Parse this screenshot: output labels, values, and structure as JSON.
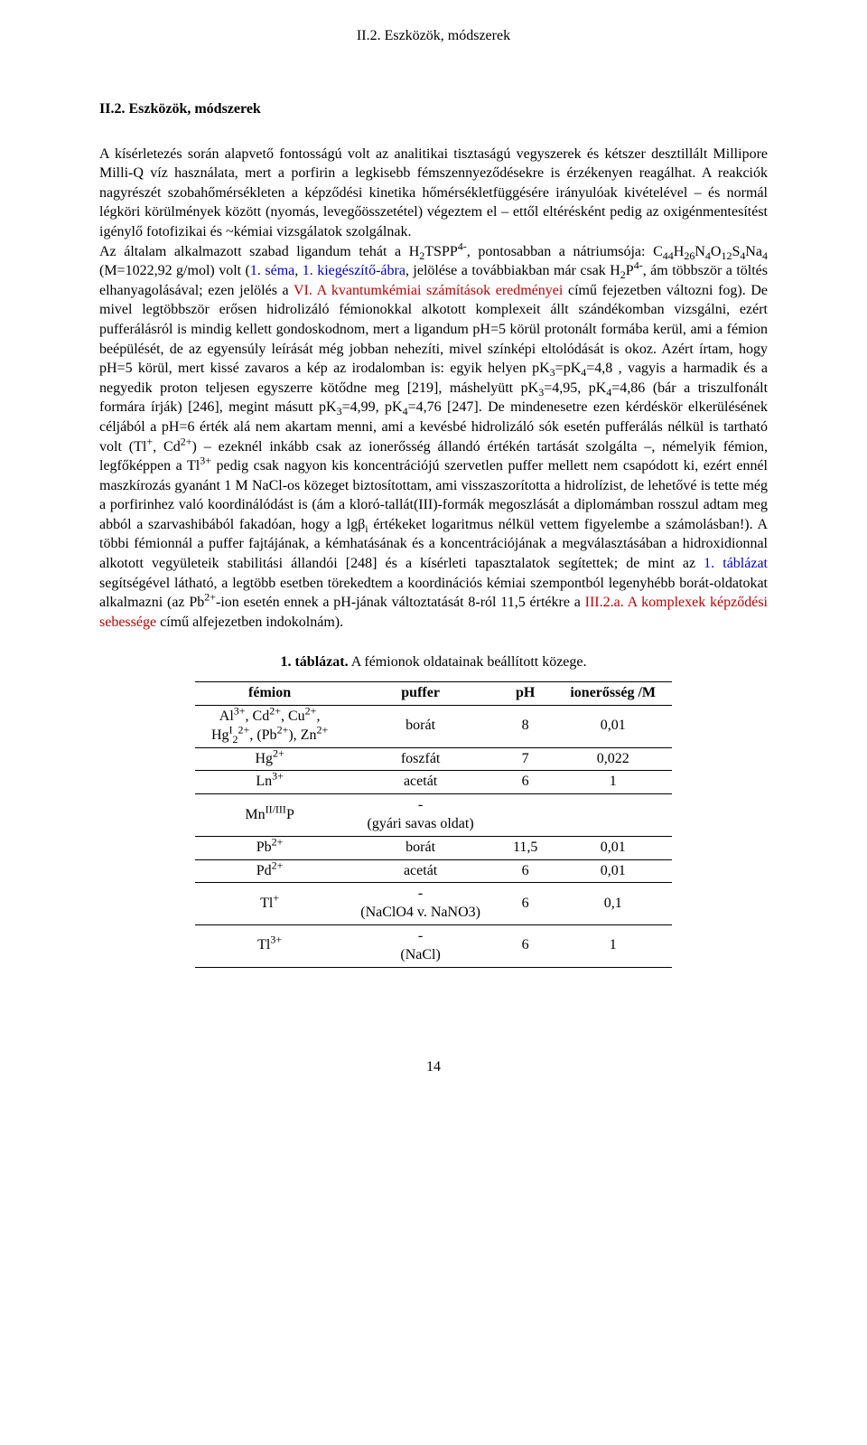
{
  "header": "II.2. Eszközök, módszerek",
  "sectionHeading": "II.2. Eszközök, módszerek",
  "para1": "A kísérletezés során alapvető fontosságú volt az analitikai tisztaságú vegyszerek és kétszer desztillált Millipore Milli-Q víz használata, mert a porfirin a legkisebb fémszennyeződésekre is érzékenyen reagálhat. A reakciók nagyrészét szobahőmérsékleten a képződési kinetika hőmérsékletfüggésére irányulóak kivételével – és normál légköri körülmények között (nyomás, levegőösszetétel) végeztem el – ettől eltérésként pedig az oxigénmentesítést igénylő fotofizikai és ~kémiai vizsgálatok szolgálnak.",
  "para2_a": "Az általam alkalmazott szabad ligandum tehát a H",
  "para2_b": "TSPP",
  "para2_c": ", pontosabban a nátriumsója: C",
  "para2_d": "H",
  "para2_e": "N",
  "para2_f": "O",
  "para2_g": "S",
  "para2_h": "Na",
  "para2_i": " (M=1022,92 g/mol) volt (",
  "link1_a": "1. séma",
  "link1_b": "1. kiegészítő-ábra",
  "para2_j": ", jelölése a továbbiakban már csak H",
  "para2_k": "P",
  "para2_l": ", ám többször a töltés elhanyagolásával; ezen jelölés a ",
  "link2": "VI. A kvantumkémiai számítások eredményei",
  "para2_m": " című fejezetben változni fog). De mivel legtöbbször erősen hidrolizáló fémionokkal alkotott komplexeit állt szándékomban vizsgálni, ezért pufferálásról is mindig kellett gondoskodnom, mert a ligandum pH=5 körül protonált formába kerül, ami a fémion beépülését, de az egyensúly leírását még jobban nehezíti, mivel színképi eltolódását is okoz. Azért írtam, hogy pH=5 körül, mert kissé zavaros a kép az irodalomban is: egyik helyen pK",
  "para2_n": "=pK",
  "para2_o": "=4,8 , vagyis a harmadik és a negyedik proton teljesen egyszerre kötődne meg [219], máshelyütt pK",
  "para2_p": "=4,95, pK",
  "para2_q": "=4,86 (bár a triszulfonált formára írják) [246], megint másutt pK",
  "para2_r": "=4,99, pK",
  "para2_s": "=4,76 [247]. De mindenesetre ezen kérdéskör elkerülésének céljából a pH=6 érték alá nem akartam menni, ami a kevésbé hidrolizáló sók esetén pufferálás nélkül is tartható volt (Tl",
  "para2_t": ", Cd",
  "para2_u": ") – ezeknél inkább csak az ionerősség állandó értékén tartását szolgálta –, némelyik fémion, legfőképpen a Tl",
  "para2_v": " pedig csak nagyon kis koncentrációjú szervetlen puffer mellett nem csapódott ki, ezért ennél maszkírozás gyanánt 1 M NaCl-os közeget biztosítottam, ami visszaszorította a hidrolízist, de lehetővé is tette még a porfirinhez való koordinálódást is (ám a kloró-tallát(III)-formák megoszlását a diplomámban rosszul adtam meg abból a szarvashibából fakadóan, hogy a lgβ",
  "para2_w": " értékeket logaritmus nélkül vettem figyelembe a számolásban!). A többi fémionnál a puffer fajtájának, a kémhatásának és a koncentrációjának a megválasztásában a hidroxidionnal alkotott vegyületeik stabilitási állandói [248] és a kísérleti tapasztalatok segítettek; de mint az ",
  "link3": "1. táblázat",
  "para2_x": " segítségével látható, a legtöbb esetben törekedtem a koordinációs kémiai szempontból legenyhébb borát-oldatokat alkalmazni (az Pb",
  "para2_y": "-ion esetén ennek a pH-jának változtatását 8-ról 11,5 értékre a ",
  "link4": "III.2.a. A komplexek képződési sebessége",
  "para2_z": " című alfejezetben indokolnám).",
  "tableCaption_bold": "1. táblázat.",
  "tableCaption_rest": " A fémionok oldatainak beállított közege.",
  "table": {
    "headers": [
      "fémion",
      "puffer",
      "pH",
      "ionerősség /M"
    ],
    "rows": [
      {
        "ion_html": "Al<sup>3+</sup>, Cd<sup>2+</sup>, Cu<sup>2+</sup>,<br>Hg<sup>I</sup><sub>2</sub><sup>2+</sup>, (Pb<sup>2+</sup>), Zn<sup>2+</sup>",
        "buffer": "borát",
        "ph": "8",
        "ion_strength": "0,01"
      },
      {
        "ion_html": "Hg<sup>2+</sup>",
        "buffer": "foszfát",
        "ph": "7",
        "ion_strength": "0,022"
      },
      {
        "ion_html": "Ln<sup>3+</sup>",
        "buffer": "acetát",
        "ph": "6",
        "ion_strength": "1"
      },
      {
        "ion_html": "Mn<sup>II/III</sup>P",
        "buffer": "-<br>(gyári savas oldat)",
        "ph": "",
        "ion_strength": ""
      },
      {
        "ion_html": "Pb<sup>2+</sup>",
        "buffer": "borát",
        "ph": "11,5",
        "ion_strength": "0,01"
      },
      {
        "ion_html": "Pd<sup>2+</sup>",
        "buffer": "acetát",
        "ph": "6",
        "ion_strength": "0,01"
      },
      {
        "ion_html": "Tl<sup>+</sup>",
        "buffer": "-<br>(NaClO4 v. NaNO3)",
        "ph": "6",
        "ion_strength": "0,1"
      },
      {
        "ion_html": "Tl<sup>3+</sup>",
        "buffer": "-<br>(NaCl)",
        "ph": "6",
        "ion_strength": "1"
      }
    ]
  },
  "pageNumber": "14"
}
